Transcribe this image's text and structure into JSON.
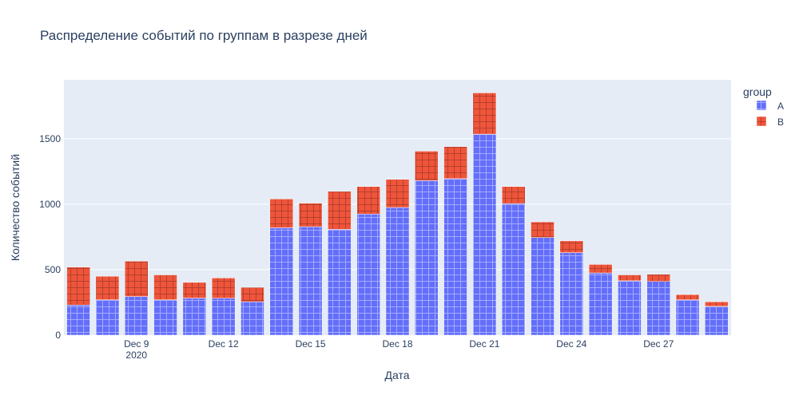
{
  "chart_data": {
    "type": "bar",
    "barmode": "stack",
    "title": "Распределение событий по группам в разрезе дней",
    "xlabel": "Дата",
    "ylabel": "Количество событий",
    "ylim": [
      0,
      1950
    ],
    "yticks": [
      0,
      500,
      1000,
      1500
    ],
    "ytick_labels": [
      "0",
      "500",
      "1000",
      "1500"
    ],
    "x": [
      "2020-12-07",
      "2020-12-08",
      "2020-12-09",
      "2020-12-10",
      "2020-12-11",
      "2020-12-12",
      "2020-12-13",
      "2020-12-14",
      "2020-12-15",
      "2020-12-16",
      "2020-12-17",
      "2020-12-18",
      "2020-12-19",
      "2020-12-20",
      "2020-12-21",
      "2020-12-22",
      "2020-12-23",
      "2020-12-24",
      "2020-12-25",
      "2020-12-26",
      "2020-12-27",
      "2020-12-28",
      "2020-12-29"
    ],
    "xticks": [
      {
        "date": "2020-12-09",
        "label": "Dec 9",
        "sublabel": "2020"
      },
      {
        "date": "2020-12-12",
        "label": "Dec 12",
        "sublabel": ""
      },
      {
        "date": "2020-12-15",
        "label": "Dec 15",
        "sublabel": ""
      },
      {
        "date": "2020-12-18",
        "label": "Dec 18",
        "sublabel": ""
      },
      {
        "date": "2020-12-21",
        "label": "Dec 21",
        "sublabel": ""
      },
      {
        "date": "2020-12-24",
        "label": "Dec 24",
        "sublabel": ""
      },
      {
        "date": "2020-12-27",
        "label": "Dec 27",
        "sublabel": ""
      }
    ],
    "series": [
      {
        "name": "A",
        "color": "#636efa",
        "values": [
          230,
          270,
          295,
          270,
          283,
          282,
          255,
          820,
          828,
          808,
          925,
          975,
          1180,
          1195,
          1535,
          1005,
          745,
          630,
          475,
          415,
          410,
          270,
          220
        ]
      },
      {
        "name": "B",
        "color": "#ef553b",
        "values": [
          290,
          180,
          270,
          190,
          120,
          155,
          110,
          220,
          180,
          290,
          210,
          215,
          225,
          245,
          315,
          130,
          120,
          90,
          65,
          45,
          55,
          40,
          35
        ]
      }
    ],
    "legend": {
      "title": "group",
      "position": "right"
    },
    "grid": true,
    "pattern": "grid"
  },
  "colors": {
    "plot_background": "#e5ecf6",
    "gridline": "#ffffff",
    "text": "#2a3f5f"
  }
}
